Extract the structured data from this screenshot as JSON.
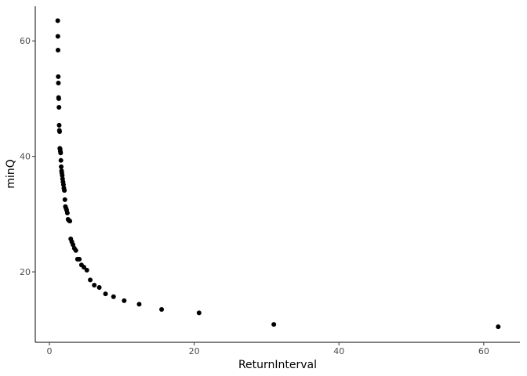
{
  "chart_data": {
    "type": "scatter",
    "x_label": "ReturnInterval",
    "y_label": "minQ",
    "x": [
      62,
      31,
      20.67,
      15.5,
      12.4,
      10.33,
      8.86,
      7.75,
      6.89,
      6.2,
      5.64,
      5.17,
      4.77,
      4.43,
      4.13,
      3.88,
      3.65,
      3.44,
      3.26,
      3.1,
      2.95,
      2.82,
      2.7,
      2.58,
      2.48,
      2.38,
      2.3,
      2.21,
      2.14,
      2.07,
      2,
      1.94,
      1.88,
      1.82,
      1.77,
      1.72,
      1.68,
      1.63,
      1.59,
      1.55,
      1.51,
      1.48,
      1.44,
      1.41,
      1.38,
      1.35,
      1.32,
      1.29,
      1.27,
      1.24,
      1.22,
      1.19,
      1.17,
      1.15
    ],
    "values": [
      10.5,
      10.9,
      12.9,
      13.5,
      14.4,
      15.0,
      15.7,
      16.2,
      17.3,
      17.7,
      18.6,
      20.3,
      20.8,
      21.2,
      22.2,
      22.2,
      23.7,
      24.1,
      24.7,
      25.2,
      25.7,
      28.8,
      28.9,
      29.1,
      30.2,
      30.7,
      31.0,
      31.3,
      32.5,
      34.1,
      34.5,
      35.1,
      35.6,
      36.1,
      36.7,
      37.1,
      37.5,
      38.2,
      39.3,
      40.6,
      40.9,
      41.3,
      41.4,
      44.3,
      44.5,
      45.4,
      48.5,
      50.0,
      50.2,
      52.7,
      53.8,
      58.4,
      60.8,
      63.5
    ],
    "color": "#000000",
    "xlim": [
      -1.95,
      65.0
    ],
    "ylim": [
      7.8,
      66.0
    ],
    "xticks": [
      0,
      20,
      40,
      60
    ],
    "yticks": [
      20,
      40,
      60
    ],
    "grid": false
  }
}
